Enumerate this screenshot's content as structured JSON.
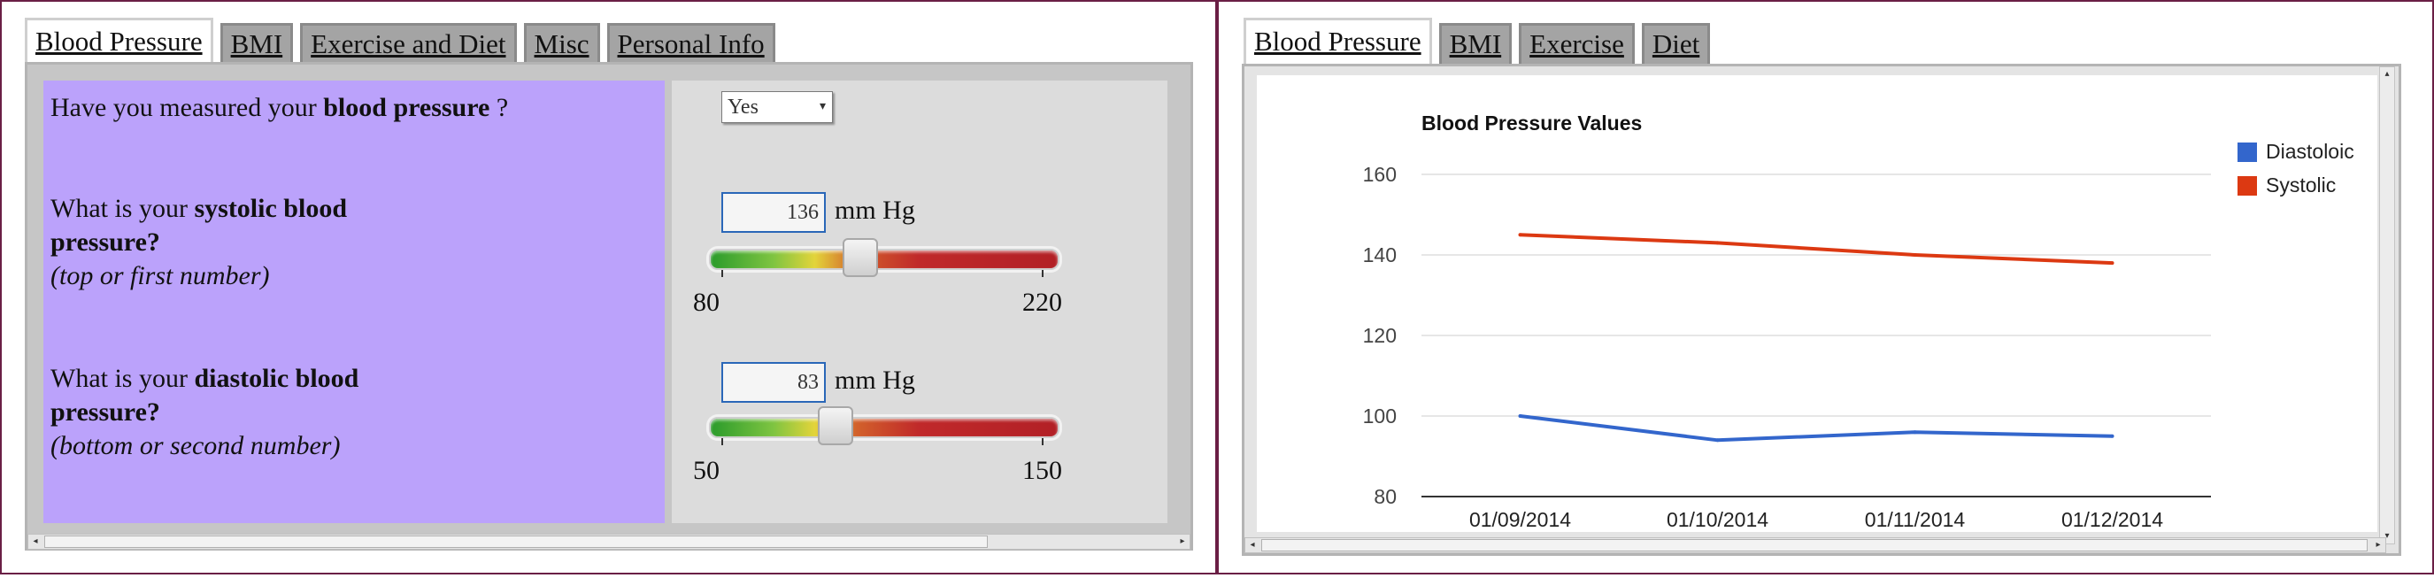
{
  "left": {
    "tabs": [
      "Blood Pressure",
      "BMI",
      "Exercise and Diet",
      "Misc",
      "Personal Info"
    ],
    "active_tab": 0,
    "measured": {
      "question_pre": "Have you measured your ",
      "question_bold": "blood pressure",
      "question_post": " ?",
      "value": "Yes"
    },
    "systolic": {
      "q_pre": "What is your ",
      "q_bold1": "systolic blood",
      "q_bold2": "pressure?",
      "hint": "(top or first number)",
      "value": "136",
      "unit": "mm Hg",
      "min": "80",
      "max": "220",
      "level": 0.4
    },
    "diastolic": {
      "q_pre": "What is your ",
      "q_bold1": "diastolic blood",
      "q_bold2": "pressure?",
      "hint": "(bottom or second number)",
      "value": "83",
      "unit": "mm Hg",
      "min": "50",
      "max": "150",
      "level": 0.33
    }
  },
  "right": {
    "tabs": [
      "Blood Pressure",
      "BMI",
      "Exercise",
      "Diet"
    ],
    "active_tab": 0
  },
  "chart_data": {
    "type": "line",
    "title": "Blood Pressure Values",
    "xlabel": "",
    "ylabel": "",
    "categories": [
      "01/09/2014",
      "01/10/2014",
      "01/11/2014",
      "01/12/2014"
    ],
    "ylim": [
      80,
      160
    ],
    "yticks": [
      160,
      140,
      120,
      100,
      80
    ],
    "grid": true,
    "legend_position": "right",
    "series": [
      {
        "name": "Diastoloic",
        "color": "#3366cc",
        "values": [
          100,
          94,
          96,
          95
        ]
      },
      {
        "name": "Systolic",
        "color": "#dc3912",
        "values": [
          145,
          143,
          140,
          138
        ]
      }
    ]
  }
}
